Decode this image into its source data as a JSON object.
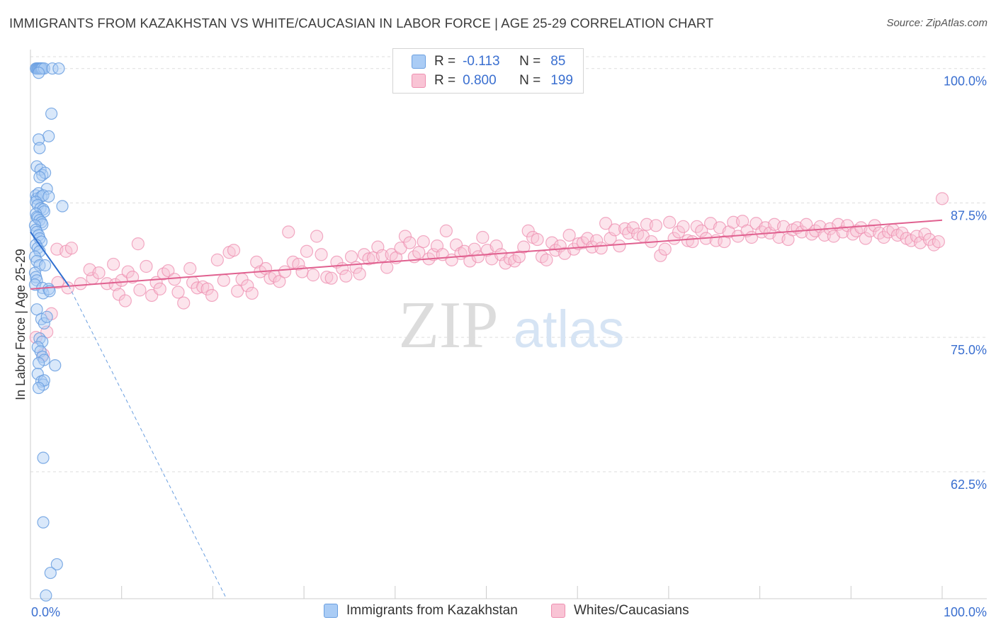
{
  "title": "IMMIGRANTS FROM KAZAKHSTAN VS WHITE/CAUCASIAN IN LABOR FORCE | AGE 25-29 CORRELATION CHART",
  "source": "Source: ZipAtlas.com",
  "watermark": {
    "zip": "ZIP",
    "atlas": "atlas"
  },
  "legend": {
    "r_label": "R =",
    "n_label": "N =",
    "rows": [
      {
        "r": "-0.113",
        "n": "85",
        "color": "#aaccf5",
        "border": "#6a9fe0"
      },
      {
        "r": "0.800",
        "n": "199",
        "color": "#f9c4d5",
        "border": "#ee8fb0"
      }
    ]
  },
  "bottom_legend": [
    "Immigrants from Kazakhstan",
    "Whites/Caucasians"
  ],
  "colors": {
    "blue": "#6a9fe0",
    "blue_line": "#2f6fd0",
    "pink": "#ee8fb0",
    "pink_line": "#e0608f",
    "grid": "#dddddd"
  },
  "chart_data": {
    "type": "scatter",
    "title": "IMMIGRANTS FROM KAZAKHSTAN VS WHITE/CAUCASIAN IN LABOR FORCE | AGE 25-29 CORRELATION CHART",
    "xlabel": "",
    "ylabel": "In Labor Force | Age 25-29",
    "xlim": [
      0,
      100
    ],
    "ylim": [
      50.7,
      101.1
    ],
    "x_tick_labels": [
      "0.0%",
      "100.0%"
    ],
    "y_ticks": [
      100.0,
      87.5,
      75.0,
      62.5
    ],
    "y_tick_labels": [
      "100.0%",
      "87.5%",
      "75.0%",
      "62.5%"
    ],
    "grid": true,
    "legend_position": "top-center",
    "series": [
      {
        "name": "Immigrants from Kazakhstan",
        "r": -0.113,
        "n": 85,
        "trend": {
          "x": [
            0.0,
            4.2
          ],
          "y": [
            84.8,
            79.8
          ]
        },
        "trend_extension": {
          "x": [
            4.2,
            21.5
          ],
          "y": [
            79.8,
            50.7
          ]
        },
        "points": [
          [
            0.6,
            100
          ],
          [
            0.7,
            100
          ],
          [
            0.8,
            100
          ],
          [
            0.9,
            100
          ],
          [
            1.0,
            100
          ],
          [
            1.1,
            100
          ],
          [
            1.2,
            100
          ],
          [
            1.3,
            100
          ],
          [
            1.5,
            100
          ],
          [
            2.4,
            100
          ],
          [
            3.1,
            100
          ],
          [
            0.9,
            99.6
          ],
          [
            2.3,
            95.8
          ],
          [
            2.0,
            93.7
          ],
          [
            0.9,
            93.4
          ],
          [
            1.0,
            92.6
          ],
          [
            0.7,
            90.9
          ],
          [
            1.1,
            90.6
          ],
          [
            1.3,
            90.1
          ],
          [
            1.6,
            90.3
          ],
          [
            1.0,
            89.9
          ],
          [
            1.8,
            88.8
          ],
          [
            0.6,
            88.2
          ],
          [
            0.7,
            87.9
          ],
          [
            0.9,
            88.4
          ],
          [
            1.2,
            88.1
          ],
          [
            1.4,
            88.2
          ],
          [
            2.0,
            88.1
          ],
          [
            0.6,
            87.6
          ],
          [
            0.8,
            87.3
          ],
          [
            1.1,
            87.0
          ],
          [
            1.4,
            86.9
          ],
          [
            1.5,
            86.7
          ],
          [
            3.5,
            87.2
          ],
          [
            0.6,
            86.5
          ],
          [
            0.7,
            86.2
          ],
          [
            0.8,
            86.1
          ],
          [
            1.0,
            85.9
          ],
          [
            1.2,
            85.7
          ],
          [
            1.3,
            85.5
          ],
          [
            0.5,
            85.4
          ],
          [
            0.6,
            85.0
          ],
          [
            0.7,
            84.8
          ],
          [
            0.9,
            84.5
          ],
          [
            1.0,
            84.2
          ],
          [
            1.2,
            83.9
          ],
          [
            0.6,
            83.6
          ],
          [
            0.8,
            83.3
          ],
          [
            1.0,
            83.0
          ],
          [
            0.5,
            82.5
          ],
          [
            0.7,
            82.1
          ],
          [
            1.0,
            81.7
          ],
          [
            1.6,
            81.7
          ],
          [
            0.5,
            81.0
          ],
          [
            0.6,
            80.6
          ],
          [
            0.7,
            80.3
          ],
          [
            0.5,
            79.9
          ],
          [
            1.3,
            79.6
          ],
          [
            1.4,
            79.1
          ],
          [
            2.0,
            79.5
          ],
          [
            2.1,
            79.3
          ],
          [
            0.7,
            77.6
          ],
          [
            1.2,
            76.7
          ],
          [
            1.5,
            76.3
          ],
          [
            1.8,
            76.9
          ],
          [
            1.0,
            74.9
          ],
          [
            1.3,
            74.6
          ],
          [
            0.8,
            74.1
          ],
          [
            1.1,
            73.7
          ],
          [
            1.3,
            73.2
          ],
          [
            1.5,
            72.9
          ],
          [
            0.9,
            72.6
          ],
          [
            2.7,
            72.4
          ],
          [
            0.8,
            71.6
          ],
          [
            1.2,
            70.9
          ],
          [
            1.4,
            70.6
          ],
          [
            1.5,
            71.0
          ],
          [
            0.9,
            70.3
          ],
          [
            1.4,
            63.8
          ],
          [
            1.4,
            57.8
          ],
          [
            2.9,
            53.9
          ],
          [
            2.2,
            53.1
          ],
          [
            1.7,
            51.0
          ]
        ]
      },
      {
        "name": "Whites/Caucasians",
        "r": 0.8,
        "n": 199,
        "trend": {
          "x": [
            0.0,
            100.0
          ],
          "y": [
            79.5,
            85.9
          ]
        },
        "points": [
          [
            0.6,
            75.0
          ],
          [
            1.8,
            75.5
          ],
          [
            2.3,
            77.2
          ],
          [
            1.4,
            73.4
          ],
          [
            2.9,
            83.2
          ],
          [
            3.9,
            83.0
          ],
          [
            4.5,
            83.3
          ],
          [
            4.1,
            79.6
          ],
          [
            3.0,
            80.1
          ],
          [
            5.5,
            80.0
          ],
          [
            6.8,
            80.5
          ],
          [
            6.5,
            81.3
          ],
          [
            7.5,
            81.0
          ],
          [
            8.4,
            80.0
          ],
          [
            9.3,
            79.9
          ],
          [
            10.0,
            80.3
          ],
          [
            9.1,
            81.8
          ],
          [
            9.7,
            79.0
          ],
          [
            10.7,
            81.1
          ],
          [
            10.4,
            78.4
          ],
          [
            11.2,
            80.6
          ],
          [
            11.8,
            83.7
          ],
          [
            12.0,
            79.4
          ],
          [
            12.7,
            81.6
          ],
          [
            13.3,
            78.9
          ],
          [
            13.8,
            80.1
          ],
          [
            14.2,
            79.5
          ],
          [
            14.6,
            80.9
          ],
          [
            15.1,
            81.2
          ],
          [
            15.8,
            80.4
          ],
          [
            16.2,
            79.2
          ],
          [
            16.8,
            78.2
          ],
          [
            17.5,
            81.4
          ],
          [
            17.8,
            80.1
          ],
          [
            18.3,
            79.6
          ],
          [
            18.9,
            79.7
          ],
          [
            19.4,
            79.5
          ],
          [
            19.9,
            78.9
          ],
          [
            20.5,
            82.2
          ],
          [
            21.2,
            80.3
          ],
          [
            21.8,
            82.9
          ],
          [
            22.3,
            83.1
          ],
          [
            22.7,
            79.3
          ],
          [
            23.2,
            80.4
          ],
          [
            23.8,
            79.8
          ],
          [
            24.3,
            79.1
          ],
          [
            24.8,
            82.0
          ],
          [
            25.2,
            81.1
          ],
          [
            25.8,
            81.4
          ],
          [
            26.3,
            80.5
          ],
          [
            26.8,
            80.7
          ],
          [
            27.3,
            80.2
          ],
          [
            27.9,
            81.1
          ],
          [
            28.3,
            84.8
          ],
          [
            28.8,
            82.0
          ],
          [
            29.4,
            81.8
          ],
          [
            29.8,
            81.1
          ],
          [
            30.3,
            83.0
          ],
          [
            31.0,
            80.8
          ],
          [
            31.4,
            84.4
          ],
          [
            31.9,
            82.7
          ],
          [
            32.5,
            80.6
          ],
          [
            33.0,
            80.5
          ],
          [
            33.6,
            82.0
          ],
          [
            34.2,
            81.4
          ],
          [
            34.6,
            80.7
          ],
          [
            35.2,
            82.5
          ],
          [
            35.7,
            81.5
          ],
          [
            36.1,
            80.9
          ],
          [
            36.6,
            82.7
          ],
          [
            37.1,
            82.3
          ],
          [
            37.6,
            82.4
          ],
          [
            38.1,
            83.4
          ],
          [
            38.6,
            82.6
          ],
          [
            39.1,
            81.5
          ],
          [
            39.6,
            82.7
          ],
          [
            40.1,
            82.4
          ],
          [
            40.6,
            83.3
          ],
          [
            41.1,
            84.4
          ],
          [
            41.6,
            83.8
          ],
          [
            42.1,
            82.5
          ],
          [
            42.6,
            82.9
          ],
          [
            43.1,
            83.9
          ],
          [
            43.7,
            82.3
          ],
          [
            44.2,
            82.7
          ],
          [
            44.6,
            83.5
          ],
          [
            45.2,
            82.7
          ],
          [
            45.6,
            84.9
          ],
          [
            46.2,
            82.2
          ],
          [
            46.7,
            83.6
          ],
          [
            47.2,
            82.8
          ],
          [
            47.6,
            83.0
          ],
          [
            48.2,
            82.1
          ],
          [
            48.7,
            83.2
          ],
          [
            49.1,
            82.5
          ],
          [
            49.6,
            84.3
          ],
          [
            50.1,
            83.1
          ],
          [
            50.6,
            82.3
          ],
          [
            51.1,
            83.5
          ],
          [
            51.6,
            82.7
          ],
          [
            52.1,
            81.9
          ],
          [
            52.6,
            82.3
          ],
          [
            53.1,
            82.1
          ],
          [
            53.6,
            82.5
          ],
          [
            54.1,
            83.4
          ],
          [
            54.6,
            84.9
          ],
          [
            55.1,
            84.3
          ],
          [
            55.6,
            84.1
          ],
          [
            56.1,
            82.5
          ],
          [
            56.6,
            82.2
          ],
          [
            57.2,
            83.8
          ],
          [
            57.6,
            83.1
          ],
          [
            58.1,
            83.5
          ],
          [
            58.6,
            82.8
          ],
          [
            59.1,
            84.5
          ],
          [
            59.6,
            83.2
          ],
          [
            60.1,
            83.7
          ],
          [
            60.6,
            83.8
          ],
          [
            61.1,
            84.2
          ],
          [
            61.6,
            83.4
          ],
          [
            62.1,
            84.0
          ],
          [
            62.6,
            83.3
          ],
          [
            63.1,
            85.6
          ],
          [
            63.6,
            84.2
          ],
          [
            64.1,
            85.0
          ],
          [
            64.6,
            83.5
          ],
          [
            65.2,
            85.1
          ],
          [
            65.6,
            84.7
          ],
          [
            66.1,
            85.2
          ],
          [
            66.6,
            84.6
          ],
          [
            67.2,
            84.4
          ],
          [
            67.6,
            85.5
          ],
          [
            68.1,
            83.9
          ],
          [
            68.6,
            85.4
          ],
          [
            69.1,
            82.6
          ],
          [
            69.6,
            83.2
          ],
          [
            70.1,
            85.7
          ],
          [
            70.6,
            84.2
          ],
          [
            71.1,
            84.8
          ],
          [
            71.6,
            85.3
          ],
          [
            72.1,
            84.0
          ],
          [
            72.6,
            83.9
          ],
          [
            73.1,
            85.3
          ],
          [
            73.6,
            84.9
          ],
          [
            74.1,
            84.2
          ],
          [
            74.6,
            85.6
          ],
          [
            75.2,
            84.0
          ],
          [
            75.6,
            85.2
          ],
          [
            76.1,
            83.9
          ],
          [
            76.6,
            84.8
          ],
          [
            77.1,
            85.7
          ],
          [
            77.6,
            84.4
          ],
          [
            78.1,
            85.8
          ],
          [
            78.6,
            84.9
          ],
          [
            79.1,
            84.3
          ],
          [
            79.6,
            85.6
          ],
          [
            80.2,
            84.8
          ],
          [
            80.6,
            85.2
          ],
          [
            81.1,
            84.7
          ],
          [
            81.6,
            85.5
          ],
          [
            82.1,
            84.3
          ],
          [
            82.6,
            85.3
          ],
          [
            83.1,
            84.1
          ],
          [
            83.6,
            85.0
          ],
          [
            84.1,
            85.2
          ],
          [
            84.6,
            84.8
          ],
          [
            85.1,
            85.5
          ],
          [
            85.7,
            84.6
          ],
          [
            86.1,
            84.9
          ],
          [
            86.6,
            85.3
          ],
          [
            87.1,
            84.5
          ],
          [
            87.7,
            85.1
          ],
          [
            88.1,
            84.4
          ],
          [
            88.6,
            85.5
          ],
          [
            89.1,
            84.8
          ],
          [
            89.6,
            85.4
          ],
          [
            90.2,
            84.6
          ],
          [
            90.6,
            84.9
          ],
          [
            91.1,
            85.2
          ],
          [
            91.6,
            84.2
          ],
          [
            92.1,
            84.9
          ],
          [
            92.6,
            85.4
          ],
          [
            93.1,
            84.7
          ],
          [
            93.6,
            84.3
          ],
          [
            94.1,
            84.8
          ],
          [
            94.6,
            85.0
          ],
          [
            95.1,
            84.5
          ],
          [
            95.6,
            84.7
          ],
          [
            96.1,
            84.2
          ],
          [
            96.6,
            84.0
          ],
          [
            97.2,
            84.4
          ],
          [
            97.6,
            83.8
          ],
          [
            98.1,
            84.6
          ],
          [
            98.6,
            84.1
          ],
          [
            99.1,
            83.6
          ],
          [
            99.6,
            83.9
          ],
          [
            100.0,
            87.9
          ]
        ]
      }
    ]
  }
}
